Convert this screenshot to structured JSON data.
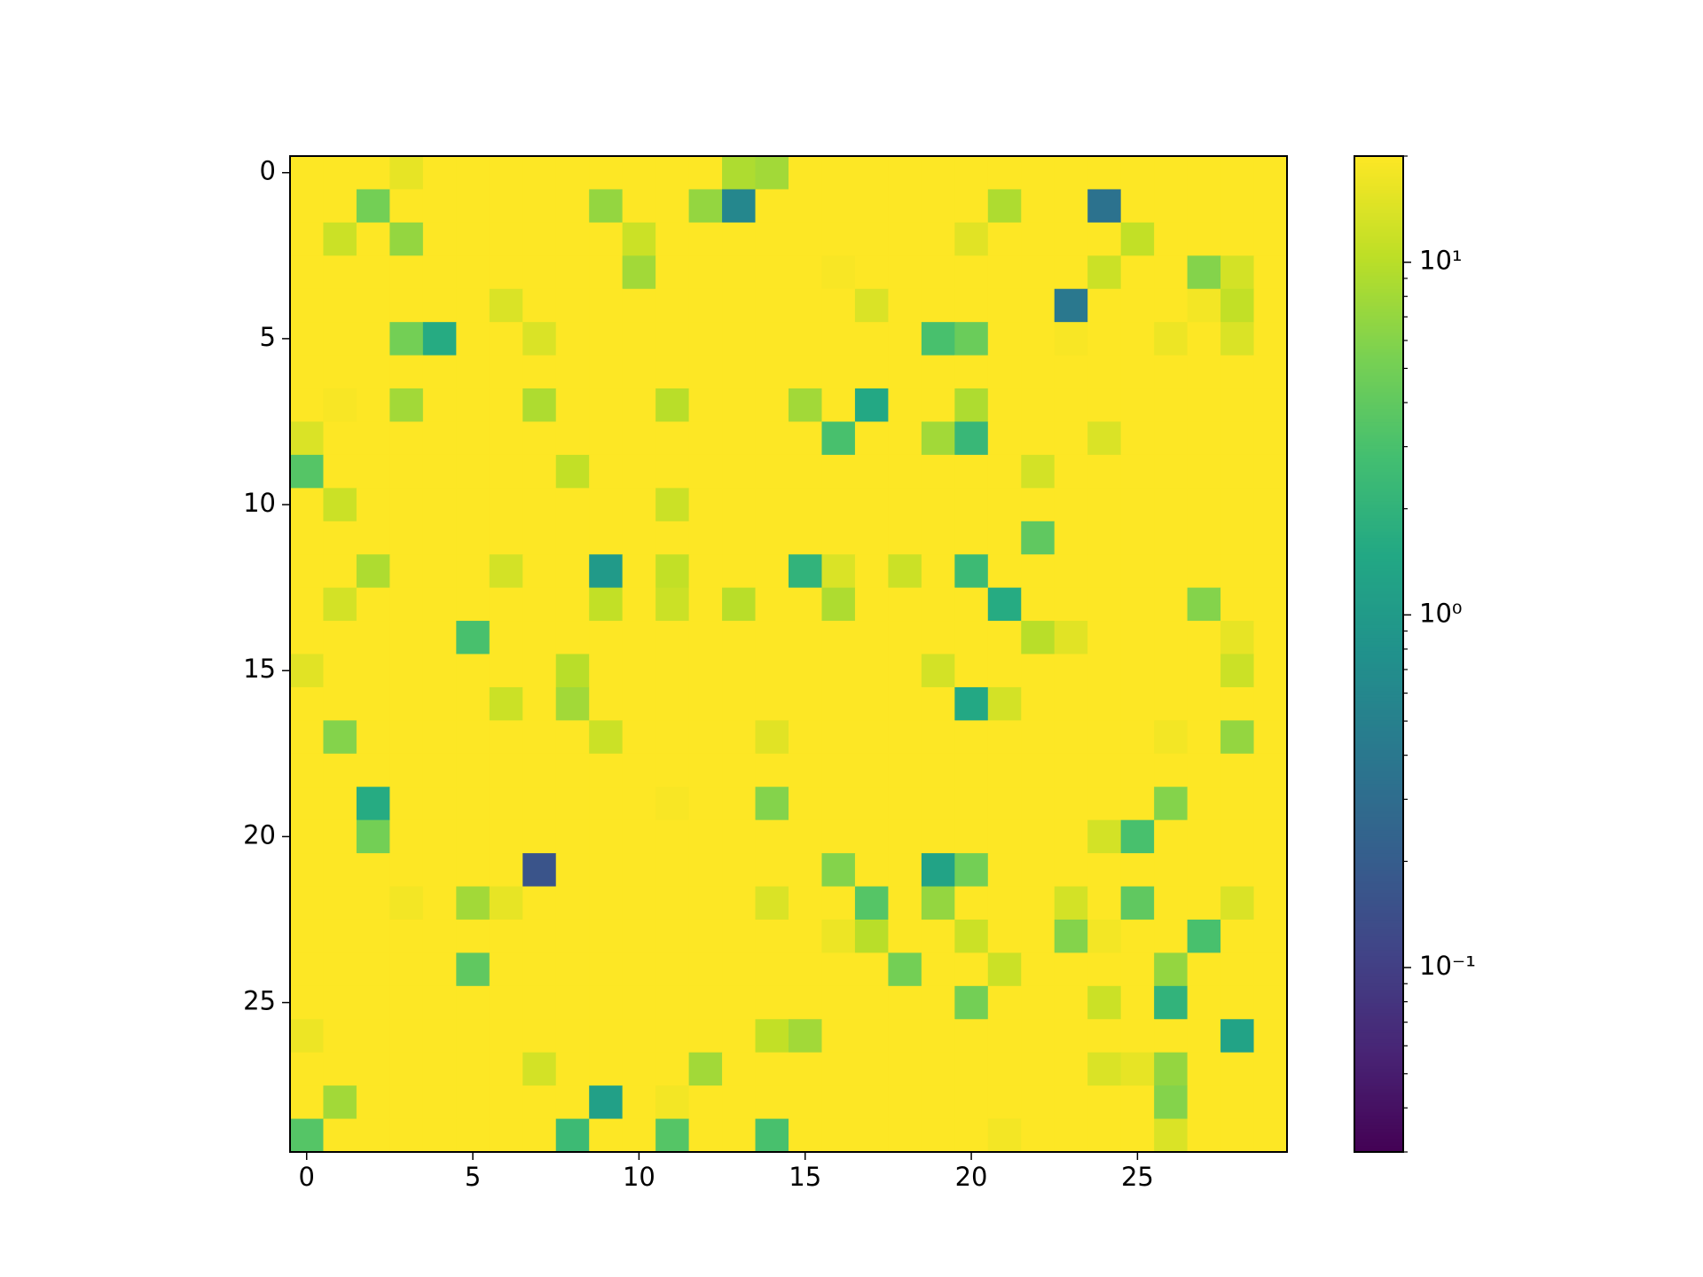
{
  "chart_data": {
    "type": "heatmap",
    "colormap": "viridis",
    "color_scale": "log",
    "xlim": [
      -0.5,
      29.5
    ],
    "ylim": [
      29.5,
      -0.5
    ],
    "xticks": [
      0,
      5,
      10,
      15,
      20,
      25
    ],
    "yticks": [
      0,
      5,
      10,
      15,
      20,
      25
    ],
    "clim": [
      0.03,
      20
    ],
    "cticks": [
      {
        "value": 0.1,
        "label": "10⁻¹"
      },
      {
        "value": 1,
        "label": "10⁰"
      },
      {
        "value": 10,
        "label": "10¹"
      }
    ],
    "z": [
      [
        20,
        20,
        20,
        16,
        20,
        20,
        20,
        20,
        20,
        20,
        20,
        20,
        20,
        9,
        8,
        20,
        20,
        20,
        20,
        20,
        20,
        20,
        20,
        20,
        20,
        20,
        20,
        20,
        20,
        20
      ],
      [
        20,
        20,
        5,
        20,
        20,
        20,
        20,
        20,
        20,
        7,
        20,
        20,
        7,
        0.6,
        20,
        20,
        20,
        20,
        20,
        20,
        20,
        9,
        20,
        20,
        0.35,
        20,
        20,
        20,
        20,
        20
      ],
      [
        20,
        12,
        20,
        7,
        20,
        20,
        20,
        20,
        20,
        20,
        12,
        20,
        20,
        20,
        20,
        20,
        20,
        20,
        20,
        20,
        15,
        20,
        20,
        20,
        20,
        11,
        20,
        20,
        20,
        20
      ],
      [
        20,
        20,
        20,
        20,
        20,
        20,
        20,
        20,
        20,
        20,
        8,
        20,
        20,
        20,
        20,
        20,
        19,
        20,
        20,
        20,
        20,
        20,
        20,
        20,
        12,
        20,
        20,
        6,
        13,
        20
      ],
      [
        20,
        20,
        20,
        20,
        20,
        20,
        14,
        20,
        20,
        20,
        20,
        20,
        20,
        20,
        20,
        20,
        20,
        14,
        20,
        20,
        20,
        20,
        20,
        0.4,
        20,
        20,
        20,
        18,
        11,
        20
      ],
      [
        20,
        20,
        20,
        5,
        1.6,
        20,
        20,
        14,
        20,
        20,
        20,
        20,
        20,
        20,
        20,
        20,
        20,
        20,
        20,
        3,
        4.5,
        20,
        20,
        19,
        20,
        20,
        17,
        20,
        14,
        20
      ],
      [
        20,
        20,
        20,
        20,
        20,
        20,
        20,
        20,
        20,
        20,
        20,
        20,
        20,
        20,
        20,
        20,
        20,
        20,
        20,
        20,
        20,
        20,
        20,
        20,
        20,
        20,
        20,
        20,
        20,
        20
      ],
      [
        20,
        19,
        20,
        8,
        20,
        20,
        20,
        9,
        20,
        20,
        20,
        10,
        20,
        20,
        20,
        8,
        20,
        1.5,
        20,
        20,
        9,
        20,
        20,
        20,
        20,
        20,
        20,
        20,
        20,
        20
      ],
      [
        14,
        20,
        20,
        20,
        20,
        20,
        20,
        20,
        20,
        20,
        20,
        20,
        20,
        20,
        20,
        20,
        3,
        20,
        20,
        8,
        2.3,
        20,
        20,
        20,
        14,
        20,
        20,
        20,
        20,
        20
      ],
      [
        3.5,
        20,
        20,
        20,
        20,
        20,
        20,
        20,
        11,
        20,
        20,
        20,
        20,
        20,
        20,
        20,
        20,
        20,
        20,
        20,
        20,
        20,
        13,
        20,
        20,
        20,
        20,
        20,
        20,
        20
      ],
      [
        20,
        12,
        20,
        20,
        20,
        20,
        20,
        20,
        20,
        20,
        20,
        12,
        20,
        20,
        20,
        20,
        20,
        20,
        20,
        20,
        20,
        20,
        20,
        20,
        20,
        20,
        20,
        20,
        20,
        20
      ],
      [
        20,
        20,
        20,
        20,
        20,
        20,
        20,
        20,
        20,
        20,
        20,
        20,
        20,
        20,
        20,
        20,
        20,
        20,
        20,
        20,
        20,
        20,
        4,
        20,
        20,
        20,
        20,
        20,
        20,
        20
      ],
      [
        20,
        20,
        9,
        20,
        20,
        20,
        13,
        20,
        20,
        1,
        20,
        11,
        20,
        20,
        20,
        2,
        14,
        20,
        12,
        20,
        2.5,
        20,
        20,
        20,
        20,
        20,
        20,
        20,
        20,
        20
      ],
      [
        20,
        13,
        20,
        20,
        20,
        20,
        20,
        20,
        20,
        11,
        20,
        12,
        20,
        10,
        20,
        20,
        9,
        20,
        20,
        20,
        20,
        1.6,
        20,
        20,
        20,
        20,
        20,
        6,
        20,
        20
      ],
      [
        20,
        20,
        20,
        20,
        20,
        3,
        20,
        20,
        20,
        20,
        20,
        20,
        20,
        20,
        20,
        20,
        20,
        20,
        20,
        20,
        20,
        20,
        10,
        15,
        20,
        20,
        20,
        20,
        16,
        20
      ],
      [
        15,
        20,
        20,
        20,
        20,
        20,
        20,
        20,
        10,
        20,
        20,
        20,
        20,
        20,
        20,
        20,
        20,
        20,
        20,
        13,
        20,
        20,
        20,
        20,
        20,
        20,
        20,
        20,
        12,
        20
      ],
      [
        20,
        20,
        20,
        20,
        20,
        20,
        12,
        20,
        8,
        20,
        20,
        20,
        20,
        20,
        20,
        20,
        20,
        20,
        20,
        20,
        1.5,
        13,
        20,
        20,
        20,
        20,
        20,
        20,
        20,
        20
      ],
      [
        20,
        6,
        20,
        20,
        20,
        20,
        20,
        20,
        20,
        12,
        20,
        20,
        20,
        20,
        15,
        20,
        20,
        20,
        20,
        20,
        20,
        20,
        20,
        20,
        20,
        20,
        18,
        20,
        7,
        20
      ],
      [
        20,
        20,
        20,
        20,
        20,
        20,
        20,
        20,
        20,
        20,
        20,
        20,
        20,
        20,
        20,
        20,
        20,
        20,
        20,
        20,
        20,
        20,
        20,
        20,
        20,
        20,
        20,
        20,
        20,
        20
      ],
      [
        20,
        20,
        1.6,
        20,
        20,
        20,
        20,
        20,
        20,
        20,
        20,
        19,
        20,
        20,
        6,
        20,
        20,
        20,
        20,
        20,
        20,
        20,
        20,
        20,
        20,
        20,
        6,
        20,
        20,
        20
      ],
      [
        20,
        20,
        5,
        20,
        20,
        20,
        20,
        20,
        20,
        20,
        20,
        20,
        20,
        20,
        20,
        20,
        20,
        20,
        20,
        20,
        20,
        20,
        20,
        20,
        13,
        3,
        20,
        20,
        20,
        20
      ],
      [
        20,
        20,
        20,
        20,
        20,
        20,
        20,
        0.16,
        20,
        20,
        20,
        20,
        20,
        20,
        20,
        20,
        6,
        20,
        20,
        1.3,
        5,
        20,
        20,
        20,
        20,
        20,
        20,
        20,
        20,
        20
      ],
      [
        20,
        20,
        20,
        18,
        20,
        8,
        16,
        20,
        20,
        20,
        20,
        20,
        20,
        20,
        14,
        20,
        20,
        3.5,
        20,
        7,
        20,
        20,
        20,
        13,
        20,
        4,
        20,
        20,
        14,
        20
      ],
      [
        20,
        20,
        20,
        20,
        20,
        20,
        20,
        20,
        20,
        20,
        20,
        20,
        20,
        20,
        20,
        20,
        17,
        10,
        20,
        20,
        12,
        20,
        20,
        6,
        18,
        20,
        20,
        3,
        20,
        20
      ],
      [
        20,
        20,
        20,
        20,
        20,
        4,
        20,
        20,
        20,
        20,
        20,
        20,
        20,
        20,
        20,
        20,
        20,
        20,
        5,
        20,
        20,
        12,
        20,
        20,
        20,
        20,
        7,
        20,
        20,
        20
      ],
      [
        20,
        20,
        20,
        20,
        20,
        20,
        20,
        20,
        20,
        20,
        20,
        20,
        20,
        20,
        20,
        20,
        20,
        20,
        20,
        20,
        5,
        20,
        20,
        20,
        12,
        20,
        2,
        20,
        20,
        20
      ],
      [
        17,
        20,
        20,
        20,
        20,
        20,
        20,
        20,
        20,
        20,
        20,
        20,
        20,
        20,
        11,
        8,
        20,
        20,
        20,
        20,
        20,
        20,
        20,
        20,
        20,
        20,
        20,
        20,
        1.3,
        20
      ],
      [
        20,
        20,
        20,
        20,
        20,
        20,
        20,
        13,
        20,
        20,
        20,
        20,
        8,
        20,
        20,
        20,
        20,
        20,
        20,
        20,
        20,
        20,
        20,
        20,
        14,
        16,
        7,
        20,
        20,
        20
      ],
      [
        20,
        8,
        20,
        20,
        20,
        20,
        20,
        20,
        20,
        1.2,
        20,
        18,
        20,
        20,
        20,
        20,
        20,
        20,
        20,
        20,
        20,
        20,
        20,
        20,
        20,
        20,
        6,
        20,
        20,
        20
      ],
      [
        3.5,
        20,
        20,
        20,
        20,
        20,
        20,
        20,
        2.5,
        20,
        20,
        3.5,
        20,
        20,
        3,
        20,
        20,
        20,
        20,
        20,
        20,
        18,
        20,
        20,
        20,
        20,
        14,
        20,
        20,
        20
      ]
    ]
  }
}
